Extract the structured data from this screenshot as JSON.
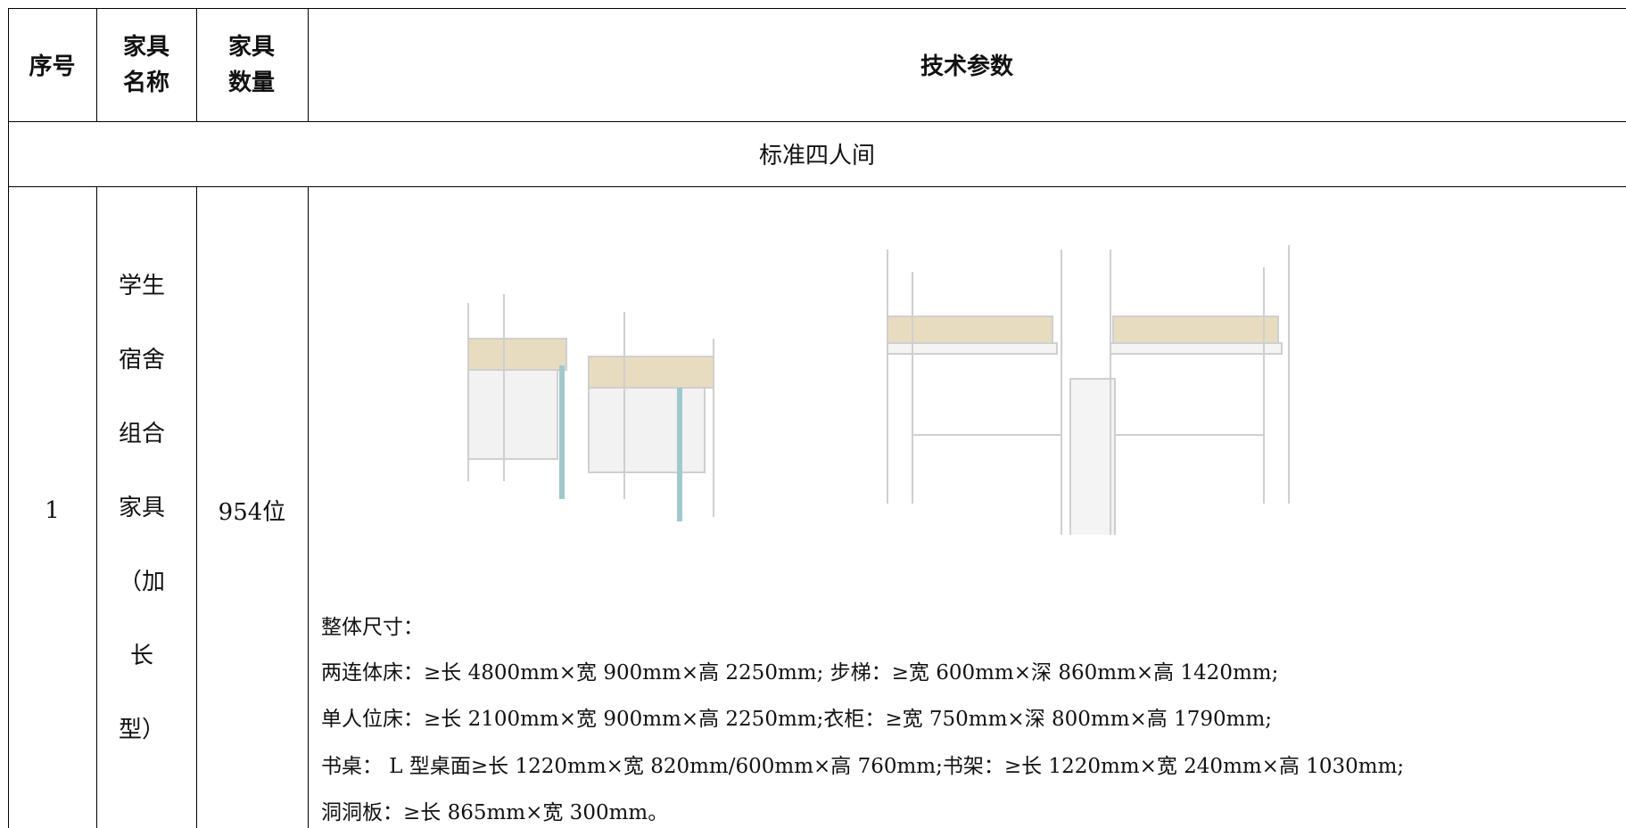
{
  "table": {
    "header": [
      "序号",
      "家具名称",
      "家具数量",
      "技术参数"
    ],
    "section": "标准四人间",
    "rows": [
      {
        "no": "1",
        "name": "学生宿舍组合家具（加长型）",
        "quantity": "954位",
        "specs": [
          "整体尺寸：",
          "两连体床：≥长 4800mm×宽 900mm×高 2250mm; 步梯：≥宽 600mm×深 860mm×高 1420mm;",
          "单人位床：≥长 2100mm×宽 900mm×高 2250mm;衣柜：≥宽 750mm×深 800mm×高 1790mm;",
          "书桌： L 型桌面≥长 1220mm×宽 820mm/600mm×高 760mm;书架：≥长 1220mm×宽 240mm×高 1030mm;",
          "洞洞板：≥长 865mm×宽 300mm。"
        ]
      }
    ]
  }
}
